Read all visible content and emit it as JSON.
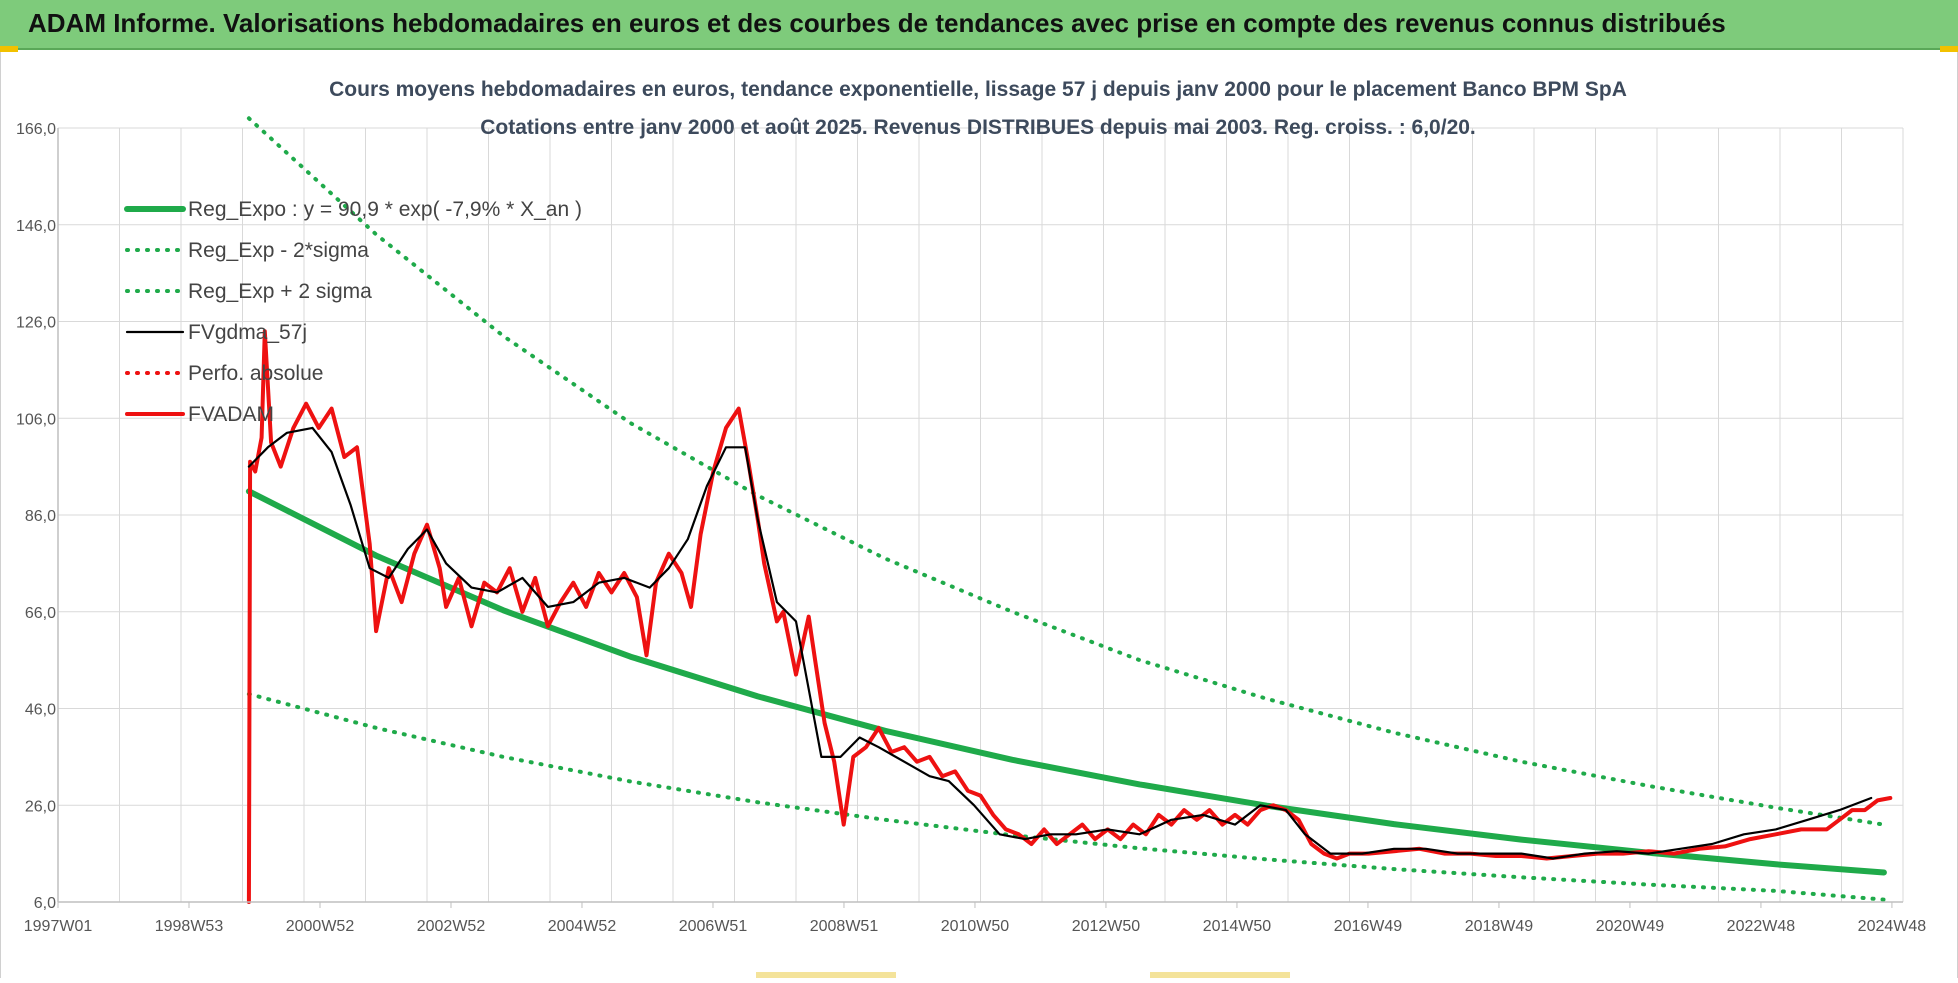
{
  "header": {
    "title": "ADAM Informe. Valorisations hebdomadaires en euros et des courbes de tendances avec prise en compte des revenus connus distribués"
  },
  "colors": {
    "header_bg": "#7ecb7b",
    "reg_expo": "#1faa4a",
    "fvgdma": "#000000",
    "fvadam": "#ee1111",
    "perfo": "#ee1111"
  },
  "chart_data": {
    "type": "line",
    "title": "Cours moyens hebdomadaires en euros, tendance exponentielle, lissage 57 j depuis janv 2000 pour le placement Banco BPM SpA",
    "subtitle": "Cotations entre janv 2000 et août 2025. Revenus DISTRIBUES depuis mai 2003. Reg. croiss. : 6,0/20.",
    "x_ticks": [
      "1997W01",
      "1998W53",
      "2000W52",
      "2002W52",
      "2004W52",
      "2006W51",
      "2008W51",
      "2010W50",
      "2012W50",
      "2014W50",
      "2016W49",
      "2018W49",
      "2020W49",
      "2022W48",
      "2024W48"
    ],
    "y_ticks": [
      "166,0",
      "146,0",
      "126,0",
      "106,0",
      "86,0",
      "66,0",
      "46,0",
      "26,0",
      "6,0"
    ],
    "ylim": [
      6,
      166
    ],
    "xlim": [
      1997.0,
      2026.0
    ],
    "grid": true,
    "legend_position": "top-left",
    "series": [
      {
        "name": "Reg_Expo : y = 90,9 * exp( -7,9% *  X_an )",
        "style": "solid-thick",
        "color": "#1faa4a",
        "points": [
          [
            2000.0,
            90.9
          ],
          [
            2002.0,
            77.6
          ],
          [
            2004.0,
            66.3
          ],
          [
            2006.0,
            56.7
          ],
          [
            2008.0,
            48.5
          ],
          [
            2010.0,
            41.4
          ],
          [
            2012.0,
            35.4
          ],
          [
            2014.0,
            30.3
          ],
          [
            2016.0,
            25.9
          ],
          [
            2018.0,
            22.1
          ],
          [
            2020.0,
            18.9
          ],
          [
            2022.0,
            16.2
          ],
          [
            2024.0,
            13.8
          ],
          [
            2025.7,
            12.1
          ]
        ]
      },
      {
        "name": "Reg_Exp - 2*sigma",
        "style": "dotted",
        "color": "#1faa4a",
        "points": [
          [
            2000.0,
            49.0
          ],
          [
            2002.0,
            42.0
          ],
          [
            2004.0,
            36.0
          ],
          [
            2006.0,
            30.9
          ],
          [
            2008.0,
            26.6
          ],
          [
            2010.0,
            23.0
          ],
          [
            2012.0,
            19.8
          ],
          [
            2014.0,
            17.1
          ],
          [
            2016.0,
            14.8
          ],
          [
            2018.0,
            12.8
          ],
          [
            2020.0,
            11.1
          ],
          [
            2022.0,
            9.6
          ],
          [
            2024.0,
            8.3
          ],
          [
            2025.7,
            6.5
          ]
        ]
      },
      {
        "name": "Reg_Exp + 2 sigma",
        "style": "dotted",
        "color": "#1faa4a",
        "points": [
          [
            2000.0,
            168.0
          ],
          [
            2002.0,
            144.0
          ],
          [
            2004.0,
            123.0
          ],
          [
            2006.0,
            105.0
          ],
          [
            2008.0,
            90.0
          ],
          [
            2010.0,
            77.0
          ],
          [
            2012.0,
            66.0
          ],
          [
            2014.0,
            56.0
          ],
          [
            2016.0,
            48.0
          ],
          [
            2018.0,
            41.0
          ],
          [
            2020.0,
            35.0
          ],
          [
            2022.0,
            30.0
          ],
          [
            2024.0,
            25.5
          ],
          [
            2025.7,
            22.0
          ]
        ]
      },
      {
        "name": "FVgdma_57j",
        "style": "solid",
        "color": "#000000",
        "points": [
          [
            2000.0,
            96
          ],
          [
            2000.3,
            100
          ],
          [
            2000.6,
            103
          ],
          [
            2001.0,
            104
          ],
          [
            2001.3,
            99
          ],
          [
            2001.6,
            88
          ],
          [
            2001.9,
            75
          ],
          [
            2002.2,
            73
          ],
          [
            2002.5,
            79
          ],
          [
            2002.8,
            83
          ],
          [
            2003.1,
            76
          ],
          [
            2003.5,
            71
          ],
          [
            2003.9,
            70
          ],
          [
            2004.3,
            73
          ],
          [
            2004.7,
            67
          ],
          [
            2005.1,
            68
          ],
          [
            2005.5,
            72
          ],
          [
            2005.9,
            73
          ],
          [
            2006.3,
            71
          ],
          [
            2006.6,
            75
          ],
          [
            2006.9,
            81
          ],
          [
            2007.2,
            92
          ],
          [
            2007.5,
            100
          ],
          [
            2007.8,
            100
          ],
          [
            2008.0,
            85
          ],
          [
            2008.3,
            68
          ],
          [
            2008.6,
            64
          ],
          [
            2008.8,
            50
          ],
          [
            2009.0,
            36
          ],
          [
            2009.3,
            36
          ],
          [
            2009.6,
            40
          ],
          [
            2009.9,
            38
          ],
          [
            2010.3,
            35
          ],
          [
            2010.7,
            32
          ],
          [
            2011.0,
            31
          ],
          [
            2011.4,
            26
          ],
          [
            2011.8,
            20
          ],
          [
            2012.2,
            19
          ],
          [
            2012.6,
            20
          ],
          [
            2013.0,
            20
          ],
          [
            2013.5,
            21
          ],
          [
            2014.0,
            20
          ],
          [
            2014.5,
            23
          ],
          [
            2015.0,
            24
          ],
          [
            2015.5,
            22
          ],
          [
            2015.9,
            26
          ],
          [
            2016.3,
            25
          ],
          [
            2016.6,
            20
          ],
          [
            2017.0,
            16
          ],
          [
            2017.5,
            16
          ],
          [
            2018.0,
            17
          ],
          [
            2018.5,
            17
          ],
          [
            2019.0,
            16
          ],
          [
            2019.5,
            16
          ],
          [
            2020.0,
            16
          ],
          [
            2020.5,
            15
          ],
          [
            2021.0,
            16
          ],
          [
            2021.5,
            16.5
          ],
          [
            2022.0,
            16
          ],
          [
            2022.5,
            17
          ],
          [
            2023.0,
            18
          ],
          [
            2023.5,
            20
          ],
          [
            2024.0,
            21
          ],
          [
            2024.5,
            23
          ],
          [
            2025.0,
            25
          ],
          [
            2025.5,
            27.5
          ]
        ]
      },
      {
        "name": "Perfo. absolue",
        "style": "dotted",
        "color": "#ee1111",
        "points": []
      },
      {
        "name": "FVADAM",
        "style": "solid-thick",
        "color": "#ee1111",
        "points": [
          [
            2000.0,
            6
          ],
          [
            2000.02,
            97
          ],
          [
            2000.1,
            95
          ],
          [
            2000.2,
            102
          ],
          [
            2000.25,
            124
          ],
          [
            2000.35,
            101
          ],
          [
            2000.5,
            96
          ],
          [
            2000.7,
            104
          ],
          [
            2000.9,
            109
          ],
          [
            2001.1,
            104
          ],
          [
            2001.3,
            108
          ],
          [
            2001.5,
            98
          ],
          [
            2001.7,
            100
          ],
          [
            2001.9,
            80
          ],
          [
            2002.0,
            62
          ],
          [
            2002.2,
            75
          ],
          [
            2002.4,
            68
          ],
          [
            2002.6,
            78
          ],
          [
            2002.8,
            84
          ],
          [
            2003.0,
            75
          ],
          [
            2003.1,
            67
          ],
          [
            2003.3,
            73
          ],
          [
            2003.5,
            63
          ],
          [
            2003.7,
            72
          ],
          [
            2003.9,
            70
          ],
          [
            2004.1,
            75
          ],
          [
            2004.3,
            66
          ],
          [
            2004.5,
            73
          ],
          [
            2004.7,
            63
          ],
          [
            2004.9,
            68
          ],
          [
            2005.1,
            72
          ],
          [
            2005.3,
            67
          ],
          [
            2005.5,
            74
          ],
          [
            2005.7,
            70
          ],
          [
            2005.9,
            74
          ],
          [
            2006.1,
            69
          ],
          [
            2006.25,
            57
          ],
          [
            2006.4,
            72
          ],
          [
            2006.6,
            78
          ],
          [
            2006.8,
            74
          ],
          [
            2006.95,
            67
          ],
          [
            2007.1,
            82
          ],
          [
            2007.3,
            95
          ],
          [
            2007.5,
            104
          ],
          [
            2007.7,
            108
          ],
          [
            2007.85,
            97
          ],
          [
            2008.0,
            85
          ],
          [
            2008.1,
            76
          ],
          [
            2008.3,
            64
          ],
          [
            2008.4,
            66
          ],
          [
            2008.6,
            53
          ],
          [
            2008.8,
            65
          ],
          [
            2008.9,
            56
          ],
          [
            2009.05,
            43
          ],
          [
            2009.2,
            35
          ],
          [
            2009.35,
            22
          ],
          [
            2009.5,
            36
          ],
          [
            2009.7,
            38
          ],
          [
            2009.9,
            42
          ],
          [
            2010.1,
            37
          ],
          [
            2010.3,
            38
          ],
          [
            2010.5,
            35
          ],
          [
            2010.7,
            36
          ],
          [
            2010.9,
            32
          ],
          [
            2011.1,
            33
          ],
          [
            2011.3,
            29
          ],
          [
            2011.5,
            28
          ],
          [
            2011.7,
            24
          ],
          [
            2011.9,
            21
          ],
          [
            2012.1,
            20
          ],
          [
            2012.3,
            18
          ],
          [
            2012.5,
            21
          ],
          [
            2012.7,
            18
          ],
          [
            2012.9,
            20
          ],
          [
            2013.1,
            22
          ],
          [
            2013.3,
            19
          ],
          [
            2013.5,
            21
          ],
          [
            2013.7,
            19
          ],
          [
            2013.9,
            22
          ],
          [
            2014.1,
            20
          ],
          [
            2014.3,
            24
          ],
          [
            2014.5,
            22
          ],
          [
            2014.7,
            25
          ],
          [
            2014.9,
            23
          ],
          [
            2015.1,
            25
          ],
          [
            2015.3,
            22
          ],
          [
            2015.5,
            24
          ],
          [
            2015.7,
            22
          ],
          [
            2015.9,
            25
          ],
          [
            2016.1,
            26
          ],
          [
            2016.3,
            25
          ],
          [
            2016.5,
            23
          ],
          [
            2016.7,
            18
          ],
          [
            2016.9,
            16
          ],
          [
            2017.1,
            15
          ],
          [
            2017.3,
            16
          ],
          [
            2017.6,
            16
          ],
          [
            2018.0,
            16.5
          ],
          [
            2018.4,
            17
          ],
          [
            2018.8,
            16
          ],
          [
            2019.2,
            16
          ],
          [
            2019.6,
            15.5
          ],
          [
            2020.0,
            15.5
          ],
          [
            2020.4,
            15
          ],
          [
            2020.8,
            15.5
          ],
          [
            2021.2,
            16
          ],
          [
            2021.6,
            16
          ],
          [
            2022.0,
            16.5
          ],
          [
            2022.4,
            16
          ],
          [
            2022.8,
            17
          ],
          [
            2023.2,
            17.5
          ],
          [
            2023.6,
            19
          ],
          [
            2024.0,
            20
          ],
          [
            2024.4,
            21
          ],
          [
            2024.8,
            21
          ],
          [
            2025.0,
            23
          ],
          [
            2025.2,
            25
          ],
          [
            2025.4,
            25
          ],
          [
            2025.6,
            27
          ],
          [
            2025.8,
            27.5
          ]
        ]
      }
    ]
  }
}
